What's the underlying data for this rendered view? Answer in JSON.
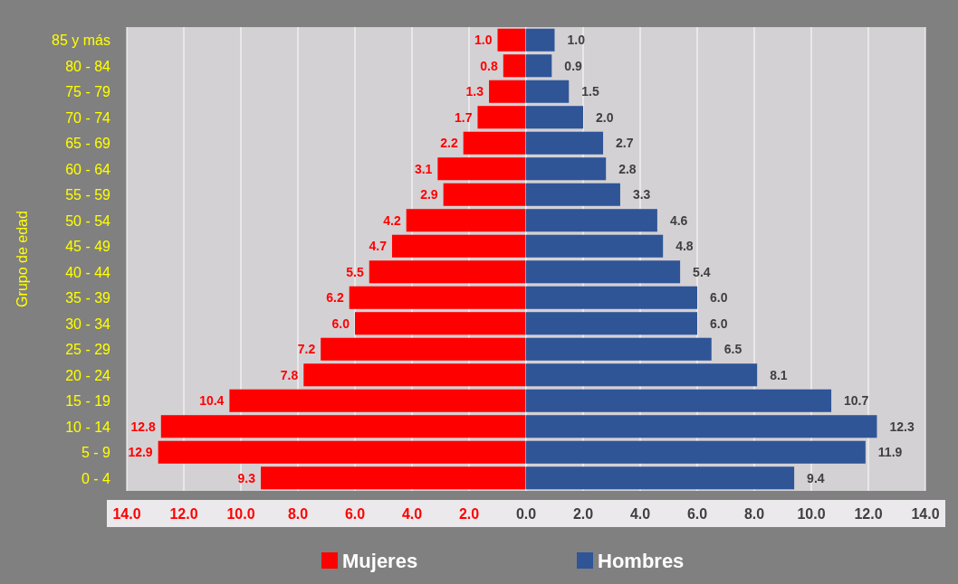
{
  "chart_data": [
    {
      "type": "bar",
      "orientation": "horizontal",
      "ylabel": "Grupo de edad",
      "categories": [
        "85 y más",
        "80 - 84",
        "75 - 79",
        "70 - 74",
        "65 - 69",
        "60 - 64",
        "55 - 59",
        "50 - 54",
        "45 - 49",
        "40 - 44",
        "35 - 39",
        "30 - 34",
        "25 - 29",
        "20 - 24",
        "15 - 19",
        "10 - 14",
        "5 - 9",
        "0 - 4"
      ],
      "series": [
        {
          "name": "Mujeres",
          "color": "#ff0000",
          "values": [
            1.0,
            0.8,
            1.3,
            1.7,
            2.2,
            3.1,
            2.9,
            4.2,
            4.7,
            5.5,
            6.2,
            6.0,
            7.2,
            7.8,
            10.4,
            12.8,
            12.9,
            9.3
          ],
          "value_labels": [
            "1.0",
            "0.8",
            "1.3",
            "1.7",
            "2.2",
            "3.1",
            "2.9",
            "4.2",
            "4.7",
            "5.5",
            "6.2",
            "6.0",
            "7.2",
            "7.8",
            "10.4",
            "12.8",
            "12.9",
            "9.3"
          ]
        }
      ],
      "xlim": [
        14,
        0
      ],
      "xticks": [
        {
          "value": 14,
          "label": "14.0"
        },
        {
          "value": 12,
          "label": "12.0"
        },
        {
          "value": 10,
          "label": "10.0"
        },
        {
          "value": 8,
          "label": "8.0"
        },
        {
          "value": 6,
          "label": "6.0"
        },
        {
          "value": 4,
          "label": "4.0"
        },
        {
          "value": 2,
          "label": "2.0"
        },
        {
          "value": 0,
          "label": null
        }
      ],
      "grid": "x",
      "legend": "bottom"
    },
    {
      "type": "bar",
      "orientation": "horizontal",
      "tick_labels": "x",
      "series": [
        {
          "name": "Hombres",
          "color": "#2f5597",
          "values": [
            1.0,
            0.9,
            1.5,
            2.0,
            2.7,
            2.8,
            3.3,
            4.6,
            4.8,
            5.4,
            6.0,
            6.0,
            6.5,
            8.1,
            10.7,
            12.3,
            11.9,
            9.4
          ],
          "value_labels": [
            "1.0",
            "0.9",
            "1.5",
            "2.0",
            "2.7",
            "2.8",
            "3.3",
            "4.6",
            "4.8",
            "5.4",
            "6.0",
            "6.0",
            "6.5",
            "8.1",
            "10.7",
            "12.3",
            "11.9",
            "9.4"
          ]
        }
      ],
      "xlim": [
        0,
        14
      ],
      "xticks": [
        {
          "value": 0,
          "label": "0.0"
        },
        {
          "value": 2,
          "label": "2.0"
        },
        {
          "value": 4,
          "label": "4.0"
        },
        {
          "value": 6,
          "label": "6.0"
        },
        {
          "value": 8,
          "label": "8.0"
        },
        {
          "value": 10,
          "label": "10.0"
        },
        {
          "value": 12,
          "label": "12.0"
        },
        {
          "value": 14,
          "label": "14.0"
        }
      ],
      "grid": "x",
      "legend": "bottom"
    }
  ]
}
